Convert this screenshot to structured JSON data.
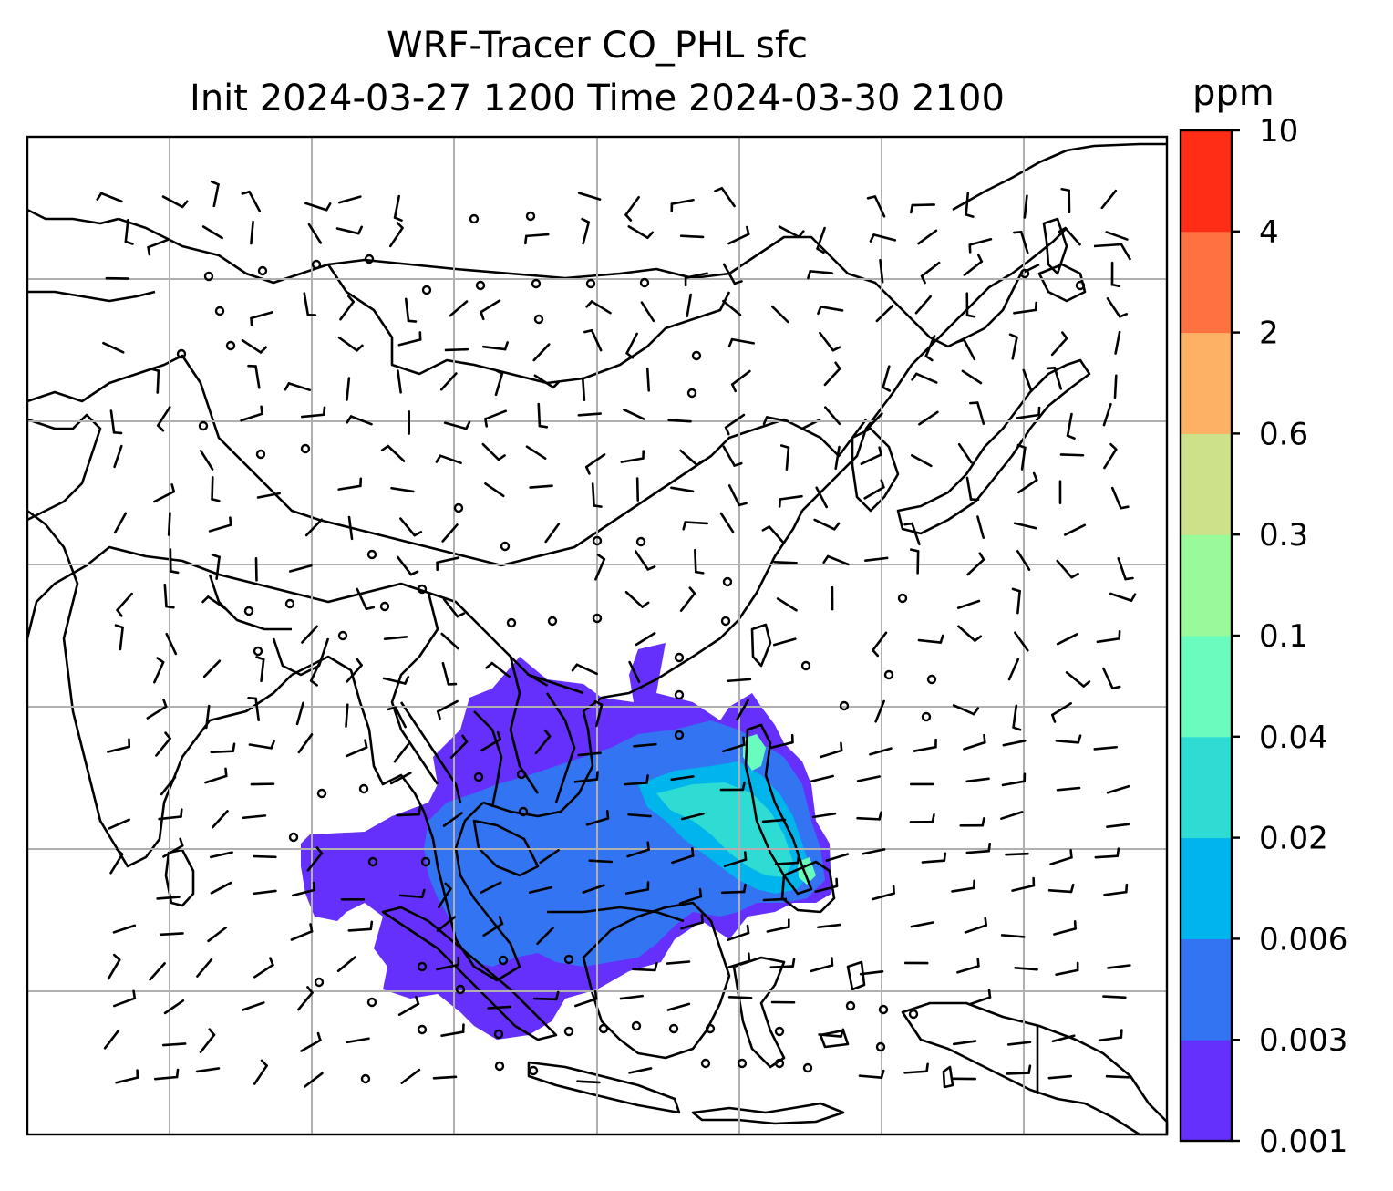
{
  "title_line1": "WRF-Tracer CO_PHL sfc",
  "title_line2": "Init 2024-03-27 1200 Time 2024-03-30 2100",
  "colorbar": {
    "unit": "ppm",
    "levels": [
      "0.001",
      "0.003",
      "0.006",
      "0.02",
      "0.04",
      "0.1",
      "0.3",
      "0.6",
      "2",
      "4",
      "10"
    ],
    "colors": [
      "#6530fb",
      "#3274f2",
      "#00b4ec",
      "#2edcd4",
      "#6afcbe",
      "#98fa98",
      "#cde08a",
      "#fdb164",
      "#ff7140",
      "#ff2c16"
    ]
  },
  "map": {
    "gridlines": true,
    "grid_color": "#b0b0b0",
    "coastline_color": "#000000",
    "field": "CO tracer surface concentration",
    "overlay": "wind barbs"
  }
}
